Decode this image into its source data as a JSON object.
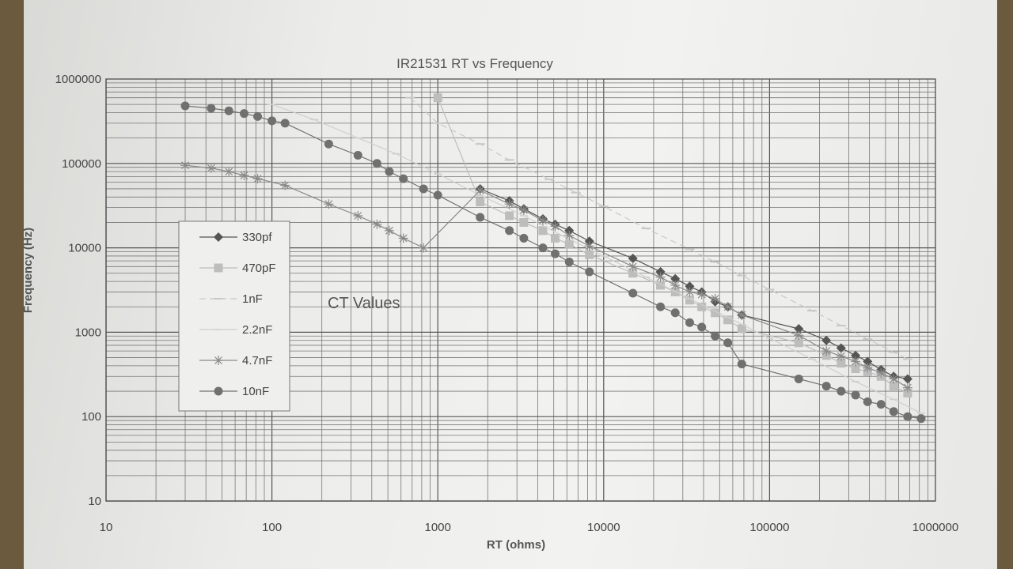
{
  "chart_data": {
    "type": "line",
    "title": "IR21531 RT vs Frequency",
    "xlabel": "RT (ohms)",
    "ylabel": "Frequency (Hz)",
    "x_scale": "log",
    "y_scale": "log",
    "xlim": [
      10,
      1000000
    ],
    "ylim": [
      10,
      1000000
    ],
    "x_ticks": [
      "10",
      "100",
      "1000",
      "10000",
      "100000",
      "1000000"
    ],
    "y_ticks": [
      "1000000",
      "100000",
      "10000",
      "1000",
      "100",
      "10"
    ],
    "grid": true,
    "legend_position": "center-left",
    "annotation": "CT Values",
    "series": [
      {
        "name": "330pf",
        "marker": "diamond",
        "color": "#555555",
        "x": [
          1800,
          2700,
          3300,
          4300,
          5100,
          6200,
          8200,
          15000,
          22000,
          27000,
          33000,
          39000,
          47000,
          56000,
          68000,
          150000,
          220000,
          270000,
          330000,
          390000,
          470000,
          560000,
          680000
        ],
        "y": [
          50000,
          36000,
          29000,
          22000,
          19000,
          16000,
          12000,
          7500,
          5200,
          4300,
          3500,
          3000,
          2300,
          2000,
          1600,
          1100,
          800,
          650,
          530,
          450,
          360,
          300,
          280
        ]
      },
      {
        "name": "470pF",
        "marker": "square",
        "color": "#bdbdbd",
        "x": [
          1000,
          1800,
          2700,
          3300,
          4300,
          5100,
          6200,
          8200,
          15000,
          22000,
          27000,
          33000,
          39000,
          47000,
          56000,
          68000,
          150000,
          220000,
          270000,
          330000,
          390000,
          470000,
          560000,
          680000
        ],
        "y": [
          600000,
          35000,
          24000,
          20000,
          16000,
          13000,
          11000,
          8300,
          5000,
          3600,
          3000,
          2400,
          2000,
          1700,
          1400,
          1100,
          750,
          530,
          430,
          370,
          340,
          300,
          230,
          190
        ]
      },
      {
        "name": "1nF",
        "marker": "dash",
        "color": "#c8c8c8",
        "x": [
          680,
          1000,
          1800,
          2700,
          4700,
          6800,
          10000,
          18000,
          33000,
          47000,
          68000,
          100000,
          180000,
          270000,
          390000,
          560000,
          680000
        ],
        "y": [
          600000,
          300000,
          170000,
          110000,
          65000,
          45000,
          31000,
          17000,
          9600,
          6800,
          4700,
          3200,
          1800,
          1200,
          830,
          580,
          480
        ]
      },
      {
        "name": "2.2nF",
        "marker": "tick",
        "color": "#cfcfcf",
        "x": [
          100,
          180,
          330,
          560,
          1000,
          1800,
          3300,
          5600,
          10000,
          18000,
          33000,
          56000,
          100000,
          180000,
          330000,
          560000,
          820000
        ],
        "y": [
          500000,
          330000,
          200000,
          130000,
          75000,
          42000,
          24000,
          14000,
          8000,
          4500,
          2500,
          1500,
          850,
          480,
          260,
          160,
          110
        ]
      },
      {
        "name": "4.7nF",
        "marker": "asterisk",
        "color": "#8a8a8a",
        "x": [
          30,
          43,
          55,
          68,
          82,
          120,
          220,
          330,
          430,
          510,
          620,
          820,
          1800,
          2700,
          3300,
          4300,
          5100,
          6200,
          8200,
          15000,
          22000,
          27000,
          33000,
          39000,
          47000,
          56000,
          68000,
          150000,
          220000,
          270000,
          330000,
          390000,
          470000,
          560000,
          680000
        ],
        "y": [
          95000,
          88000,
          80000,
          72000,
          66000,
          55000,
          33000,
          24000,
          19000,
          16000,
          13000,
          10000,
          48000,
          33000,
          28000,
          21000,
          18000,
          14000,
          10500,
          6000,
          4500,
          3600,
          3000,
          2800,
          2500,
          2000,
          1600,
          920,
          600,
          520,
          450,
          380,
          330,
          280,
          220
        ]
      },
      {
        "name": "10nF",
        "marker": "circle",
        "color": "#707070",
        "x": [
          30,
          43,
          55,
          68,
          82,
          100,
          120,
          220,
          330,
          430,
          510,
          620,
          820,
          1000,
          1800,
          2700,
          3300,
          4300,
          5100,
          6200,
          8200,
          15000,
          22000,
          27000,
          33000,
          39000,
          47000,
          56000,
          68000,
          150000,
          220000,
          270000,
          330000,
          390000,
          470000,
          560000,
          680000,
          820000
        ],
        "y": [
          480000,
          450000,
          420000,
          390000,
          360000,
          320000,
          300000,
          170000,
          125000,
          100000,
          80000,
          66000,
          50000,
          42000,
          23000,
          16000,
          13000,
          10000,
          8500,
          6800,
          5200,
          2900,
          2000,
          1700,
          1300,
          1150,
          900,
          750,
          420,
          280,
          230,
          200,
          180,
          150,
          140,
          115,
          100,
          95
        ]
      }
    ]
  }
}
